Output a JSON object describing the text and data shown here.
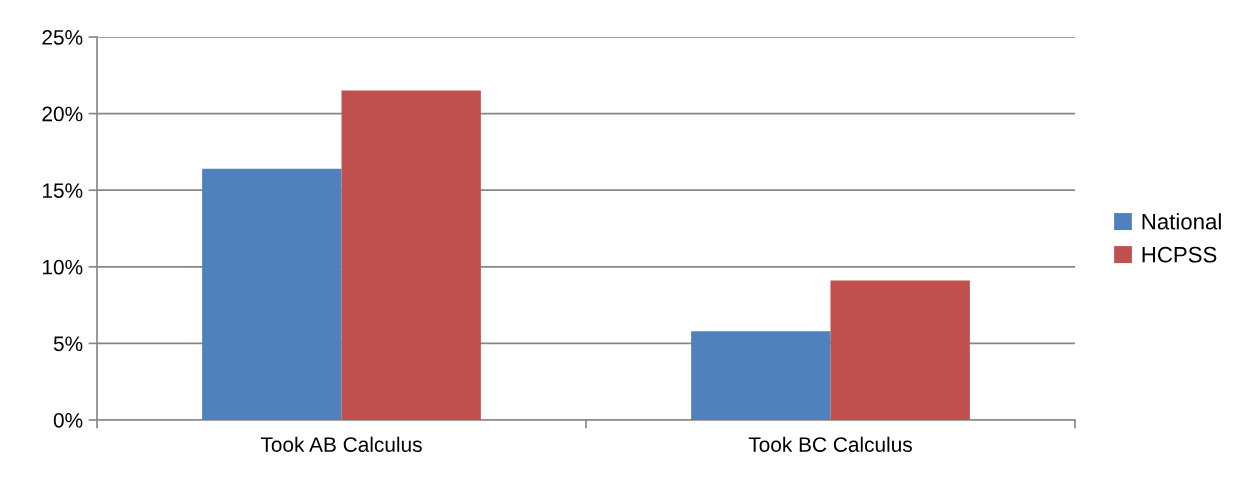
{
  "chart_data": {
    "type": "bar",
    "categories": [
      "Took AB Calculus",
      "Took BC Calculus"
    ],
    "series": [
      {
        "name": "National",
        "color": "#4f81bd",
        "values": [
          16.4,
          5.8
        ]
      },
      {
        "name": "HCPSS",
        "color": "#c0504d",
        "values": [
          21.5,
          9.1
        ]
      }
    ],
    "ylim": [
      0,
      25
    ],
    "yticks": [
      {
        "value": 0,
        "label": "0%"
      },
      {
        "value": 5,
        "label": "5%"
      },
      {
        "value": 10,
        "label": "10%"
      },
      {
        "value": 15,
        "label": "15%"
      },
      {
        "value": 20,
        "label": "20%"
      },
      {
        "value": 25,
        "label": "25%"
      }
    ],
    "grid": "y",
    "legend": "right"
  }
}
